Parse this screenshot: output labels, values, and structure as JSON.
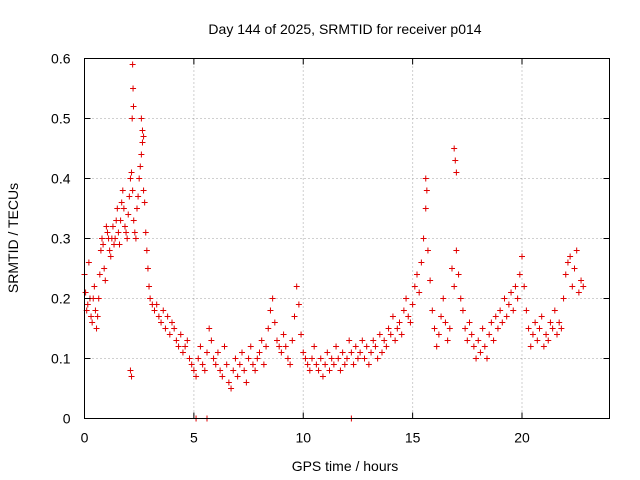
{
  "chart_data": {
    "type": "scatter",
    "title": "Day 144 of 2025, SRMTID for receiver p014",
    "xlabel": "GPS time / hours",
    "ylabel": "SRMTID / TECUs",
    "xlim": [
      0,
      24
    ],
    "ylim": [
      0,
      0.6
    ],
    "xticks": [
      0,
      5,
      10,
      15,
      20
    ],
    "xtick_labels": [
      "0",
      "5",
      "10",
      "15",
      "20"
    ],
    "yticks": [
      0,
      0.1,
      0.2,
      0.3,
      0.4,
      0.5,
      0.6
    ],
    "ytick_labels": [
      "0",
      "0.1",
      "0.2",
      "0.3",
      "0.4",
      "0.5",
      "0.6"
    ],
    "grid": true,
    "marker": "+",
    "color": "#e00000",
    "series": [
      {
        "name": "p014",
        "x": [
          0.0,
          0.05,
          0.1,
          0.15,
          0.2,
          0.25,
          0.3,
          0.35,
          0.4,
          0.45,
          0.5,
          0.55,
          0.6,
          0.65,
          0.7,
          0.75,
          0.8,
          0.85,
          0.9,
          0.95,
          1.0,
          1.05,
          1.1,
          1.15,
          1.2,
          1.25,
          1.3,
          1.35,
          1.4,
          1.45,
          1.5,
          1.55,
          1.6,
          1.65,
          1.7,
          1.75,
          1.8,
          1.85,
          1.9,
          1.95,
          2.0,
          2.05,
          2.1,
          2.15,
          2.2,
          2.25,
          2.3,
          2.35,
          2.4,
          2.45,
          2.5,
          2.55,
          2.6,
          2.65,
          2.7,
          2.75,
          2.8,
          2.85,
          2.9,
          2.95,
          3.0,
          3.1,
          3.2,
          3.3,
          3.4,
          3.5,
          3.6,
          3.7,
          3.8,
          3.9,
          4.0,
          4.1,
          4.2,
          4.3,
          4.4,
          4.5,
          4.6,
          4.7,
          4.8,
          4.9,
          5.0,
          5.1,
          5.2,
          5.3,
          5.4,
          5.5,
          5.6,
          5.7,
          5.8,
          5.9,
          6.0,
          6.1,
          6.2,
          6.3,
          6.4,
          6.5,
          6.6,
          6.7,
          6.8,
          6.9,
          7.0,
          7.1,
          7.2,
          7.3,
          7.4,
          7.5,
          7.6,
          7.7,
          7.8,
          7.9,
          8.0,
          8.1,
          8.2,
          8.3,
          8.4,
          8.5,
          8.6,
          8.7,
          8.8,
          8.9,
          9.0,
          9.1,
          9.2,
          9.3,
          9.4,
          9.5,
          9.6,
          9.7,
          9.8,
          9.9,
          10.0,
          10.1,
          10.2,
          10.3,
          10.4,
          10.5,
          10.6,
          10.7,
          10.8,
          10.9,
          11.0,
          11.1,
          11.2,
          11.3,
          11.4,
          11.5,
          11.6,
          11.7,
          11.8,
          11.9,
          12.0,
          12.1,
          12.2,
          12.3,
          12.4,
          12.5,
          12.6,
          12.7,
          12.8,
          12.9,
          13.0,
          13.1,
          13.2,
          13.3,
          13.4,
          13.5,
          13.6,
          13.7,
          13.8,
          13.9,
          14.0,
          14.1,
          14.2,
          14.3,
          14.4,
          14.5,
          14.6,
          14.7,
          14.8,
          14.9,
          15.0,
          15.1,
          15.2,
          15.3,
          15.4,
          15.5,
          15.6,
          15.7,
          15.8,
          15.9,
          16.0,
          16.1,
          16.2,
          16.3,
          16.4,
          16.5,
          16.6,
          16.7,
          16.8,
          16.9,
          17.0,
          17.1,
          17.2,
          17.3,
          17.4,
          17.5,
          17.6,
          17.7,
          17.8,
          17.9,
          18.0,
          18.1,
          18.2,
          18.3,
          18.4,
          18.5,
          18.6,
          18.7,
          18.8,
          18.9,
          19.0,
          19.1,
          19.2,
          19.3,
          19.4,
          19.5,
          19.6,
          19.7,
          19.8,
          19.9,
          20.0,
          20.1,
          20.2,
          20.3,
          20.4,
          20.5,
          20.6,
          20.7,
          20.8,
          20.9,
          21.0,
          21.1,
          21.2,
          21.3,
          21.4,
          21.5,
          21.6,
          21.7,
          21.8,
          21.9,
          22.0,
          22.1,
          22.2,
          22.3,
          22.4,
          22.5,
          22.6,
          22.7,
          22.8,
          2.2,
          2.22,
          2.24,
          2.18,
          2.6,
          2.65,
          2.7,
          15.6,
          15.65,
          16.9,
          16.95,
          17.0,
          2.1,
          2.15,
          5.1,
          5.6,
          12.2
        ],
        "y": [
          0.24,
          0.21,
          0.18,
          0.19,
          0.26,
          0.2,
          0.17,
          0.16,
          0.2,
          0.22,
          0.18,
          0.15,
          0.17,
          0.2,
          0.24,
          0.28,
          0.3,
          0.29,
          0.25,
          0.23,
          0.32,
          0.31,
          0.3,
          0.28,
          0.27,
          0.3,
          0.32,
          0.29,
          0.3,
          0.33,
          0.35,
          0.31,
          0.29,
          0.33,
          0.36,
          0.38,
          0.35,
          0.32,
          0.31,
          0.3,
          0.34,
          0.37,
          0.4,
          0.41,
          0.38,
          0.33,
          0.31,
          0.3,
          0.35,
          0.37,
          0.4,
          0.42,
          0.44,
          0.46,
          0.38,
          0.36,
          0.31,
          0.28,
          0.25,
          0.22,
          0.2,
          0.19,
          0.18,
          0.19,
          0.17,
          0.16,
          0.18,
          0.15,
          0.17,
          0.14,
          0.16,
          0.15,
          0.13,
          0.12,
          0.14,
          0.11,
          0.12,
          0.13,
          0.1,
          0.09,
          0.08,
          0.07,
          0.1,
          0.12,
          0.09,
          0.08,
          0.11,
          0.15,
          0.13,
          0.1,
          0.09,
          0.11,
          0.08,
          0.07,
          0.12,
          0.09,
          0.06,
          0.05,
          0.08,
          0.1,
          0.07,
          0.09,
          0.11,
          0.08,
          0.06,
          0.1,
          0.12,
          0.09,
          0.08,
          0.1,
          0.11,
          0.13,
          0.09,
          0.12,
          0.15,
          0.18,
          0.2,
          0.16,
          0.13,
          0.12,
          0.11,
          0.14,
          0.12,
          0.1,
          0.09,
          0.13,
          0.17,
          0.22,
          0.19,
          0.14,
          0.11,
          0.1,
          0.09,
          0.08,
          0.1,
          0.12,
          0.09,
          0.08,
          0.1,
          0.07,
          0.09,
          0.11,
          0.08,
          0.1,
          0.09,
          0.12,
          0.1,
          0.08,
          0.11,
          0.09,
          0.1,
          0.13,
          0.11,
          0.09,
          0.12,
          0.1,
          0.11,
          0.13,
          0.1,
          0.12,
          0.09,
          0.11,
          0.13,
          0.12,
          0.1,
          0.14,
          0.11,
          0.13,
          0.12,
          0.15,
          0.14,
          0.17,
          0.13,
          0.15,
          0.16,
          0.14,
          0.18,
          0.2,
          0.17,
          0.16,
          0.19,
          0.22,
          0.24,
          0.21,
          0.26,
          0.3,
          0.35,
          0.28,
          0.23,
          0.18,
          0.15,
          0.12,
          0.14,
          0.17,
          0.2,
          0.16,
          0.13,
          0.15,
          0.25,
          0.22,
          0.28,
          0.24,
          0.2,
          0.18,
          0.15,
          0.13,
          0.16,
          0.14,
          0.12,
          0.1,
          0.13,
          0.11,
          0.15,
          0.12,
          0.1,
          0.14,
          0.16,
          0.13,
          0.17,
          0.15,
          0.18,
          0.16,
          0.2,
          0.17,
          0.19,
          0.21,
          0.18,
          0.22,
          0.2,
          0.24,
          0.27,
          0.22,
          0.18,
          0.15,
          0.12,
          0.14,
          0.16,
          0.13,
          0.15,
          0.17,
          0.12,
          0.14,
          0.13,
          0.16,
          0.15,
          0.18,
          0.14,
          0.16,
          0.15,
          0.2,
          0.24,
          0.26,
          0.27,
          0.22,
          0.25,
          0.28,
          0.21,
          0.23,
          0.22,
          0.59,
          0.55,
          0.52,
          0.5,
          0.5,
          0.48,
          0.47,
          0.4,
          0.38,
          0.45,
          0.43,
          0.41,
          0.08,
          0.07,
          0.0,
          0.0,
          0.0
        ]
      }
    ]
  }
}
